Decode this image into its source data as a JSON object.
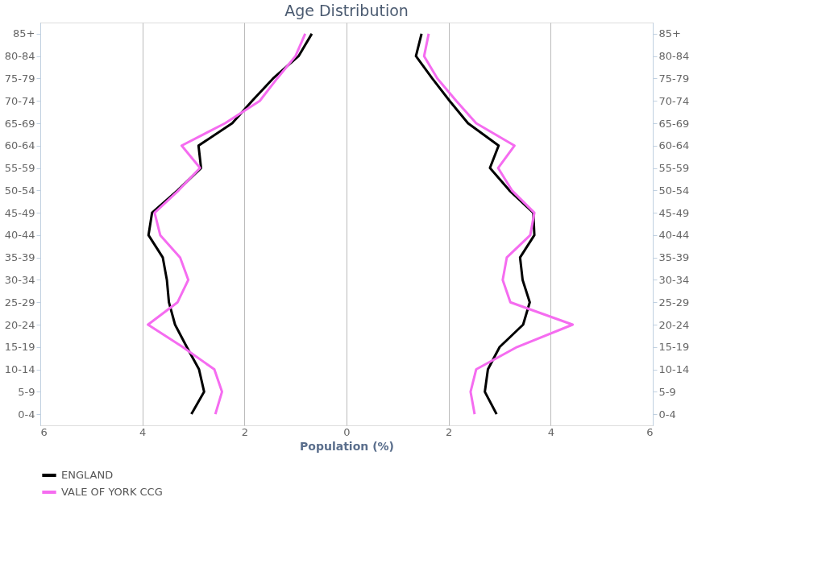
{
  "chart_data": {
    "type": "line",
    "orientation": "horizontal",
    "title": "Age Distribution",
    "xlabel": "Population (%)",
    "categories": [
      "85+",
      "80-84",
      "75-79",
      "70-74",
      "65-69",
      "60-64",
      "55-59",
      "50-54",
      "45-49",
      "40-44",
      "35-39",
      "30-34",
      "25-29",
      "20-24",
      "15-19",
      "10-14",
      "5-9",
      "0-4"
    ],
    "series": [
      {
        "name": "ENGLAND",
        "color": "#000000",
        "values": [
          -0.68,
          -0.94,
          -1.44,
          -1.85,
          -2.24,
          -2.9,
          -2.85,
          -3.31,
          -3.81,
          -3.88,
          -3.6,
          -3.52,
          -3.48,
          -3.36,
          -3.13,
          -2.89,
          -2.79,
          -3.04
        ]
      },
      {
        "name": "VALE OF YORK CCG",
        "color": "#f56cf0",
        "values": [
          -0.81,
          -1.0,
          -1.36,
          -1.7,
          -2.38,
          -3.23,
          -2.87,
          -3.29,
          -3.76,
          -3.65,
          -3.26,
          -3.1,
          -3.31,
          -3.89,
          -3.21,
          -2.59,
          -2.44,
          -2.57
        ]
      },
      {
        "color": "#000000",
        "values": [
          1.47,
          1.36,
          1.68,
          2.02,
          2.38,
          2.98,
          2.81,
          3.19,
          3.66,
          3.68,
          3.4,
          3.45,
          3.59,
          3.46,
          3.0,
          2.77,
          2.71,
          2.94
        ]
      },
      {
        "color": "#f56cf0",
        "values": [
          1.61,
          1.52,
          1.78,
          2.15,
          2.54,
          3.29,
          2.97,
          3.24,
          3.68,
          3.6,
          3.14,
          3.06,
          3.21,
          4.43,
          3.34,
          2.54,
          2.43,
          2.51
        ]
      }
    ],
    "xlim": [
      -6,
      6
    ],
    "xticks": [
      {
        "value": -6,
        "label": "6"
      },
      {
        "value": -4,
        "label": "4"
      },
      {
        "value": -2,
        "label": "2"
      },
      0,
      2,
      4,
      6
    ],
    "grid": "x",
    "legend": "bottom",
    "marker": "none",
    "line_style": "solid"
  }
}
